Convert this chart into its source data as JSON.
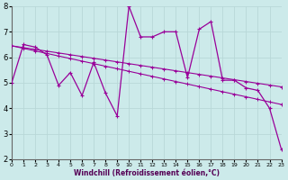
{
  "xlabel": "Windchill (Refroidissement éolien,°C)",
  "bg_color": "#cceaea",
  "grid_color": "#aacccc",
  "line_color": "#990099",
  "x_data": [
    0,
    1,
    2,
    3,
    4,
    5,
    6,
    7,
    8,
    9,
    10,
    11,
    12,
    13,
    14,
    15,
    16,
    17,
    18,
    19,
    20,
    21,
    22,
    23
  ],
  "y_main": [
    5.0,
    6.5,
    6.4,
    6.1,
    4.9,
    5.4,
    4.5,
    5.8,
    4.6,
    3.7,
    8.0,
    6.8,
    6.8,
    7.0,
    7.0,
    5.2,
    7.1,
    7.4,
    5.1,
    5.1,
    4.8,
    4.7,
    4.0,
    2.4
  ],
  "y_trend1": [
    6.45,
    6.35,
    6.25,
    6.15,
    6.05,
    5.95,
    5.85,
    5.75,
    5.65,
    5.55,
    5.45,
    5.35,
    5.25,
    5.15,
    5.05,
    4.95,
    4.85,
    4.75,
    4.65,
    4.55,
    4.45,
    4.35,
    4.25,
    4.15
  ],
  "y_trend2": [
    6.45,
    6.38,
    6.31,
    6.24,
    6.17,
    6.1,
    6.03,
    5.96,
    5.89,
    5.82,
    5.75,
    5.68,
    5.61,
    5.54,
    5.47,
    5.4,
    5.33,
    5.26,
    5.19,
    5.12,
    5.05,
    4.98,
    4.91,
    4.84
  ],
  "ylim": [
    2,
    8
  ],
  "xlim": [
    0,
    23
  ]
}
